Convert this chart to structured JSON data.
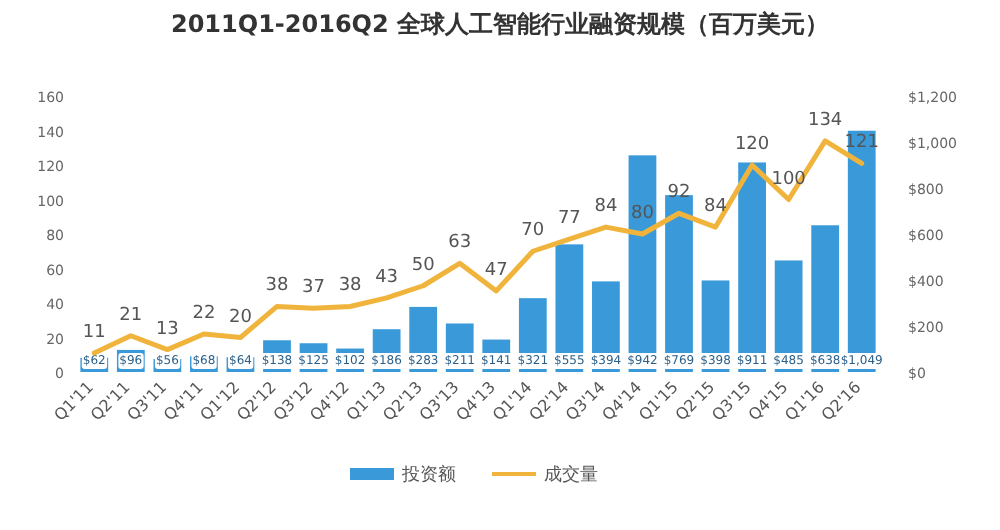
{
  "chart_data": {
    "type": "bar",
    "title": "2011Q1-2016Q2 全球人工智能行业融资规模（百万美元）",
    "categories": [
      "Q1'11",
      "Q2'11",
      "Q3'11",
      "Q4'11",
      "Q1'12",
      "Q2'12",
      "Q3'12",
      "Q4'12",
      "Q1'13",
      "Q2'13",
      "Q3'13",
      "Q4'13",
      "Q1'14",
      "Q2'14",
      "Q3'14",
      "Q4'14",
      "Q1'15",
      "Q2'15",
      "Q3'15",
      "Q4'15",
      "Q1'16",
      "Q2'16"
    ],
    "series": [
      {
        "name": "投资额",
        "axis": "y2",
        "color": "#3a9ad9",
        "values": [
          62,
          96,
          56,
          68,
          64,
          138,
          125,
          102,
          186,
          283,
          211,
          141,
          321,
          555,
          394,
          942,
          769,
          398,
          911,
          485,
          638,
          1049
        ],
        "value_labels": [
          "$62",
          "$96",
          "$56",
          "$68",
          "$64",
          "$138",
          "$125",
          "$102",
          "$186",
          "$283",
          "$211",
          "$141",
          "$321",
          "$555",
          "$394",
          "$942",
          "$769",
          "$398",
          "$911",
          "$485",
          "$638",
          "$1,049"
        ]
      },
      {
        "name": "成交量",
        "type": "line",
        "color": "#f0b43c",
        "values": [
          11,
          21,
          13,
          22,
          20,
          38,
          37,
          38,
          43,
          50,
          63,
          47,
          70,
          77,
          84,
          80,
          92,
          84,
          120,
          100,
          134,
          121
        ],
        "value_labels": [
          "11",
          "21",
          "13",
          "22",
          "20",
          "38",
          "37",
          "38",
          "43",
          "50",
          "63",
          "47",
          "70",
          "77",
          "84",
          "80",
          "92",
          "84",
          "120",
          "100",
          "134",
          "121"
        ]
      }
    ],
    "ylim": [
      0,
      160
    ],
    "yticks": [
      0,
      20,
      40,
      60,
      80,
      100,
      120,
      140,
      160
    ],
    "y2lim": [
      0,
      1200
    ],
    "y2ticks": [
      {
        "value": 0,
        "label": "$0"
      },
      {
        "value": 200,
        "label": "$200"
      },
      {
        "value": 400,
        "label": "$400"
      },
      {
        "value": 600,
        "label": "$600"
      },
      {
        "value": 800,
        "label": "$800"
      },
      {
        "value": 1000,
        "label": "$1,000"
      },
      {
        "value": 1200,
        "label": "$1,200"
      }
    ],
    "legend": "bottom",
    "grid": false
  }
}
